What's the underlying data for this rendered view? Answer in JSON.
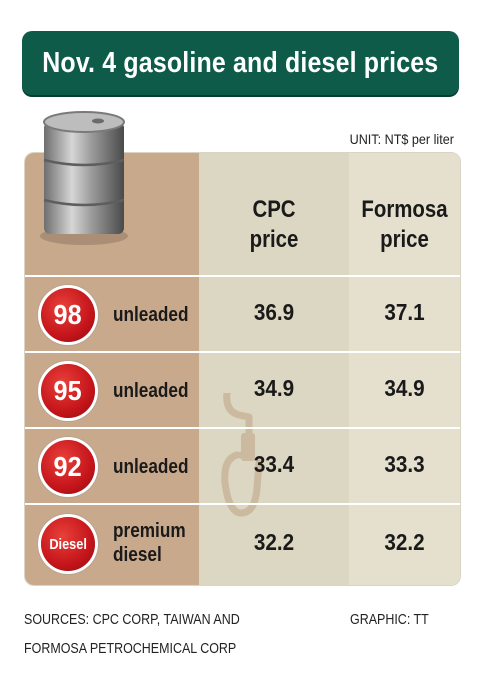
{
  "title": "Nov. 4 gasoline and diesel prices",
  "unit": "UNIT: NT$ per liter",
  "headers": {
    "cpc": [
      "CPC",
      "price"
    ],
    "formosa": [
      "Formosa",
      "price"
    ]
  },
  "rows": [
    {
      "badge": "98",
      "label": [
        "unleaded"
      ],
      "cpc": "36.9",
      "formosa": "37.1"
    },
    {
      "badge": "95",
      "label": [
        "unleaded"
      ],
      "cpc": "34.9",
      "formosa": "34.9"
    },
    {
      "badge": "92",
      "label": [
        "unleaded"
      ],
      "cpc": "33.4",
      "formosa": "33.3"
    },
    {
      "badge": "Diesel",
      "label": [
        "premium",
        "diesel"
      ],
      "cpc": "32.2",
      "formosa": "32.2"
    }
  ],
  "sources": [
    "SOURCES: CPC CORP, TAIWAN AND",
    "FORMOSA PETROCHEMICAL CORP"
  ],
  "credit": "GRAPHIC: TT",
  "colors": {
    "title_bg": "#0f5b4a",
    "badge_red": "#c5151b",
    "left_col": "#c9a98c",
    "mid_col": "#dcd7c2"
  },
  "chart_data": {
    "type": "table",
    "title": "Nov. 4 gasoline and diesel prices",
    "unit": "NT$ per liter",
    "columns": [
      "CPC price",
      "Formosa price"
    ],
    "categories": [
      "98 unleaded",
      "95 unleaded",
      "92 unleaded",
      "Diesel premium diesel"
    ],
    "series": [
      {
        "name": "CPC price",
        "values": [
          36.9,
          34.9,
          33.4,
          32.2
        ]
      },
      {
        "name": "Formosa price",
        "values": [
          37.1,
          34.9,
          33.3,
          32.2
        ]
      }
    ]
  }
}
